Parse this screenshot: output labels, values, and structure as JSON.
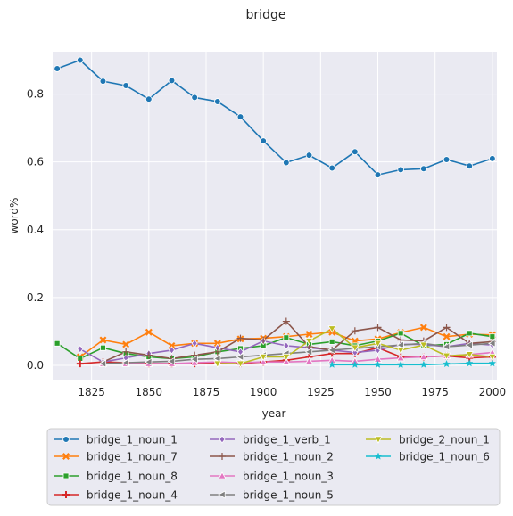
{
  "chart_data": {
    "type": "line",
    "title": "bridge",
    "xlabel": "year",
    "ylabel": "word%",
    "xlim": [
      1808,
      2002
    ],
    "ylim": [
      -0.042,
      0.925
    ],
    "xticks": [
      1825,
      1850,
      1875,
      1900,
      1925,
      1950,
      1975,
      2000
    ],
    "yticks": [
      0.0,
      0.2,
      0.4,
      0.6,
      0.8
    ],
    "ytick_labels": [
      "0.0",
      "0.2",
      "0.4",
      "0.6",
      "0.8"
    ],
    "grid": true,
    "legend_placement": "bottom, below axes, 3 columns",
    "series": [
      {
        "name": "bridge_1_noun_1",
        "color": "#1f77b4",
        "marker": "circle",
        "x": [
          1810,
          1820,
          1830,
          1840,
          1850,
          1860,
          1870,
          1880,
          1890,
          1900,
          1910,
          1920,
          1930,
          1940,
          1950,
          1960,
          1970,
          1980,
          1990,
          2000
        ],
        "y": [
          0.875,
          0.9,
          0.838,
          0.825,
          0.785,
          0.84,
          0.79,
          0.778,
          0.733,
          0.662,
          0.598,
          0.62,
          0.582,
          0.63,
          0.562,
          0.577,
          0.58,
          0.607,
          0.588,
          0.61
        ]
      },
      {
        "name": "bridge_1_noun_7",
        "color": "#ff7f0e",
        "marker": "x",
        "x": [
          1820,
          1830,
          1840,
          1850,
          1860,
          1870,
          1880,
          1890,
          1900,
          1910,
          1920,
          1930,
          1940,
          1950,
          1960,
          1970,
          1980,
          1990,
          2000
        ],
        "y": [
          0.025,
          0.075,
          0.062,
          0.098,
          0.058,
          0.065,
          0.065,
          0.078,
          0.08,
          0.085,
          0.092,
          0.098,
          0.072,
          0.078,
          0.097,
          0.112,
          0.085,
          0.092,
          0.09
        ]
      },
      {
        "name": "bridge_1_noun_8",
        "color": "#2ca02c",
        "marker": "square",
        "x": [
          1810,
          1820,
          1830,
          1840,
          1850,
          1860,
          1870,
          1880,
          1890,
          1900,
          1910,
          1920,
          1930,
          1940,
          1950,
          1960,
          1970,
          1980,
          1990,
          2000
        ],
        "y": [
          0.065,
          0.02,
          0.052,
          0.035,
          0.025,
          0.02,
          0.025,
          0.04,
          0.05,
          0.058,
          0.082,
          0.062,
          0.07,
          0.058,
          0.072,
          0.095,
          0.058,
          0.062,
          0.095,
          0.085
        ]
      },
      {
        "name": "bridge_1_noun_4",
        "color": "#d62728",
        "marker": "plus",
        "x": [
          1820,
          1830,
          1840,
          1850,
          1860,
          1870,
          1880,
          1890,
          1900,
          1910,
          1920,
          1930,
          1940,
          1950,
          1960,
          1970,
          1980,
          1990,
          2000
        ],
        "y": [
          0.005,
          0.01,
          0.008,
          0.005,
          0.005,
          0.005,
          0.008,
          0.005,
          0.01,
          0.015,
          0.025,
          0.035,
          0.035,
          0.052,
          0.025,
          0.025,
          0.028,
          0.022,
          0.025
        ]
      },
      {
        "name": "bridge_1_verb_1",
        "color": "#9467bd",
        "marker": "diamond",
        "x": [
          1820,
          1830,
          1840,
          1850,
          1860,
          1870,
          1880,
          1890,
          1900,
          1910,
          1920,
          1930,
          1940,
          1950,
          1960,
          1970,
          1980,
          1990,
          2000
        ],
        "y": [
          0.048,
          0.01,
          0.022,
          0.035,
          0.045,
          0.065,
          0.052,
          0.04,
          0.072,
          0.058,
          0.052,
          0.045,
          0.038,
          0.045,
          0.062,
          0.062,
          0.055,
          0.065,
          0.06
        ]
      },
      {
        "name": "bridge_1_noun_2",
        "color": "#8c564b",
        "marker": "plus-thin",
        "x": [
          1830,
          1840,
          1850,
          1860,
          1870,
          1880,
          1890,
          1900,
          1910,
          1920,
          1930,
          1940,
          1950,
          1960,
          1970,
          1980,
          1990,
          2000
        ],
        "y": [
          0.01,
          0.04,
          0.03,
          0.02,
          0.03,
          0.04,
          0.08,
          0.075,
          0.13,
          0.055,
          0.045,
          0.102,
          0.112,
          0.075,
          0.072,
          0.112,
          0.065,
          0.07
        ]
      },
      {
        "name": "bridge_1_noun_3",
        "color": "#e377c2",
        "marker": "triangle-up",
        "x": [
          1830,
          1840,
          1850,
          1860,
          1870,
          1880,
          1890,
          1900,
          1910,
          1920,
          1930,
          1940,
          1950,
          1960,
          1970,
          1980,
          1990,
          2000
        ],
        "y": [
          0.005,
          0.005,
          0.005,
          0.005,
          0.008,
          0.01,
          0.008,
          0.01,
          0.01,
          0.012,
          0.015,
          0.012,
          0.018,
          0.022,
          0.025,
          0.028,
          0.032,
          0.038
        ]
      },
      {
        "name": "bridge_1_noun_5",
        "color": "#7f7f7f",
        "marker": "triangle-left",
        "x": [
          1830,
          1840,
          1850,
          1860,
          1870,
          1880,
          1890,
          1900,
          1910,
          1920,
          1930,
          1940,
          1950,
          1960,
          1970,
          1980,
          1990,
          2000
        ],
        "y": [
          0.005,
          0.008,
          0.01,
          0.012,
          0.018,
          0.02,
          0.025,
          0.03,
          0.035,
          0.04,
          0.045,
          0.05,
          0.055,
          0.06,
          0.065,
          0.055,
          0.06,
          0.065
        ]
      },
      {
        "name": "bridge_2_noun_1",
        "color": "#bcbd22",
        "marker": "triangle-down",
        "x": [
          1880,
          1890,
          1900,
          1910,
          1920,
          1930,
          1940,
          1950,
          1960,
          1970,
          1980,
          1990,
          2000
        ],
        "y": [
          0.005,
          0.005,
          0.025,
          0.025,
          0.072,
          0.108,
          0.052,
          0.065,
          0.045,
          0.06,
          0.028,
          0.032,
          0.025
        ]
      },
      {
        "name": "bridge_1_noun_6",
        "color": "#17becf",
        "marker": "star",
        "x": [
          1930,
          1940,
          1950,
          1960,
          1970,
          1980,
          1990,
          2000
        ],
        "y": [
          0.002,
          0.002,
          0.002,
          0.002,
          0.002,
          0.004,
          0.006,
          0.006
        ]
      }
    ]
  }
}
